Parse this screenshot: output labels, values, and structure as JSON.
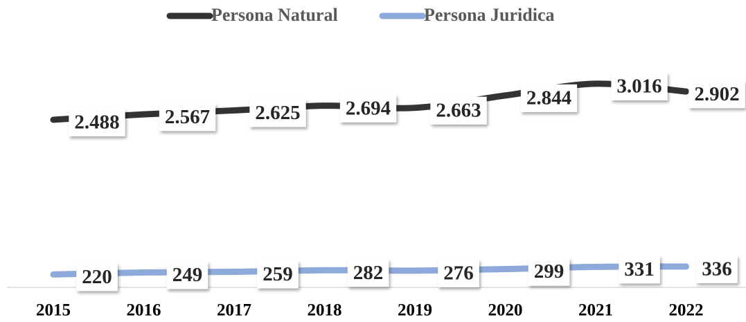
{
  "chart_data": {
    "type": "line",
    "categories": [
      "2015",
      "2016",
      "2017",
      "2018",
      "2019",
      "2020",
      "2021",
      "2022"
    ],
    "series": [
      {
        "name": "Persona Natural",
        "color": "#333333",
        "values": [
          2488,
          2567,
          2625,
          2694,
          2663,
          2844,
          3016,
          2902
        ],
        "value_labels": [
          "2.488",
          "2.567",
          "2.625",
          "2.694",
          "2.663",
          "2.844",
          "3.016",
          "2.902"
        ]
      },
      {
        "name": "Persona Juridica",
        "color": "#8eaadb",
        "values": [
          220,
          249,
          259,
          282,
          276,
          299,
          331,
          336
        ]
      }
    ],
    "legend": "top"
  }
}
